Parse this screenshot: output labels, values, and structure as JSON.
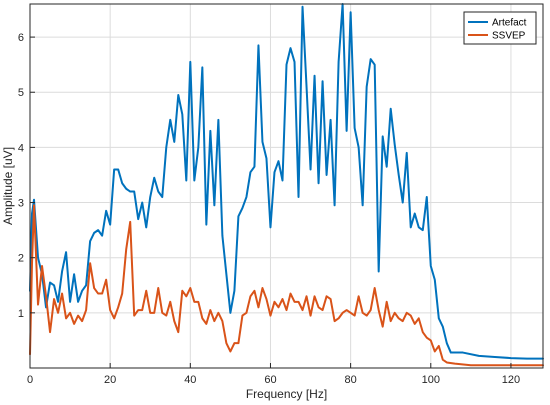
{
  "chart_data": {
    "type": "line",
    "title": "",
    "xlabel": "Frequency [Hz]",
    "ylabel": "Amplitude [uV]",
    "xlim": [
      0,
      128
    ],
    "ylim": [
      0,
      6.6
    ],
    "xticks": [
      0,
      20,
      40,
      60,
      80,
      100,
      120
    ],
    "yticks": [
      1,
      2,
      3,
      4,
      5,
      6
    ],
    "grid": true,
    "legend_position": "top-right",
    "series": [
      {
        "name": "Artefact",
        "color": "#0072BD",
        "points": [
          [
            0,
            1.4
          ],
          [
            0.5,
            2.8
          ],
          [
            1,
            3.05
          ],
          [
            2,
            2.0
          ],
          [
            3,
            1.7
          ],
          [
            4,
            1.1
          ],
          [
            5,
            1.55
          ],
          [
            6,
            1.5
          ],
          [
            7,
            1.2
          ],
          [
            8,
            1.75
          ],
          [
            9,
            2.1
          ],
          [
            10,
            1.2
          ],
          [
            11,
            1.7
          ],
          [
            12,
            1.2
          ],
          [
            13,
            1.4
          ],
          [
            14,
            1.5
          ],
          [
            15,
            2.3
          ],
          [
            16,
            2.45
          ],
          [
            17,
            2.5
          ],
          [
            18,
            2.4
          ],
          [
            19,
            2.85
          ],
          [
            20,
            2.6
          ],
          [
            21,
            3.6
          ],
          [
            22,
            3.6
          ],
          [
            23,
            3.35
          ],
          [
            24,
            3.25
          ],
          [
            25,
            3.2
          ],
          [
            26,
            3.2
          ],
          [
            27,
            2.7
          ],
          [
            28,
            3.0
          ],
          [
            29,
            2.55
          ],
          [
            30,
            3.1
          ],
          [
            31,
            3.45
          ],
          [
            32,
            3.2
          ],
          [
            33,
            3.1
          ],
          [
            34,
            4.0
          ],
          [
            35,
            4.5
          ],
          [
            36,
            4.1
          ],
          [
            37,
            4.95
          ],
          [
            38,
            4.6
          ],
          [
            39,
            3.4
          ],
          [
            40,
            5.55
          ],
          [
            41,
            3.4
          ],
          [
            42,
            4.0
          ],
          [
            43,
            5.45
          ],
          [
            44,
            2.6
          ],
          [
            45,
            4.3
          ],
          [
            46,
            2.95
          ],
          [
            47,
            4.5
          ],
          [
            48,
            2.4
          ],
          [
            49,
            1.7
          ],
          [
            50,
            1.0
          ],
          [
            51,
            1.4
          ],
          [
            52,
            2.75
          ],
          [
            53,
            2.9
          ],
          [
            54,
            3.1
          ],
          [
            55,
            3.55
          ],
          [
            56,
            3.65
          ],
          [
            57,
            5.85
          ],
          [
            58,
            4.1
          ],
          [
            59,
            3.8
          ],
          [
            60,
            2.55
          ],
          [
            61,
            3.55
          ],
          [
            62,
            3.75
          ],
          [
            63,
            3.4
          ],
          [
            64,
            5.5
          ],
          [
            65,
            5.8
          ],
          [
            66,
            5.55
          ],
          [
            67,
            3.1
          ],
          [
            68,
            6.55
          ],
          [
            69,
            5.1
          ],
          [
            70,
            3.6
          ],
          [
            71,
            5.3
          ],
          [
            72,
            3.35
          ],
          [
            73,
            5.2
          ],
          [
            74,
            3.5
          ],
          [
            75,
            4.5
          ],
          [
            76,
            2.95
          ],
          [
            77,
            5.55
          ],
          [
            78,
            6.6
          ],
          [
            79,
            4.3
          ],
          [
            80,
            6.45
          ],
          [
            81,
            4.35
          ],
          [
            82,
            4.0
          ],
          [
            83,
            2.95
          ],
          [
            84,
            5.1
          ],
          [
            85,
            5.6
          ],
          [
            86,
            5.5
          ],
          [
            87,
            1.75
          ],
          [
            88,
            4.2
          ],
          [
            89,
            3.65
          ],
          [
            90,
            4.7
          ],
          [
            91,
            4.05
          ],
          [
            92,
            3.5
          ],
          [
            93,
            3.0
          ],
          [
            94,
            3.9
          ],
          [
            95,
            2.55
          ],
          [
            96,
            2.8
          ],
          [
            97,
            2.55
          ],
          [
            98,
            2.5
          ],
          [
            99,
            3.1
          ],
          [
            100,
            1.85
          ],
          [
            101,
            1.6
          ],
          [
            102,
            0.9
          ],
          [
            103,
            0.75
          ],
          [
            104,
            0.45
          ],
          [
            105,
            0.28
          ],
          [
            106,
            0.28
          ],
          [
            108,
            0.28
          ],
          [
            112,
            0.22
          ],
          [
            116,
            0.2
          ],
          [
            120,
            0.18
          ],
          [
            124,
            0.17
          ],
          [
            128,
            0.17
          ]
        ]
      },
      {
        "name": "SSVEP",
        "color": "#D95319",
        "points": [
          [
            0,
            0.25
          ],
          [
            0.5,
            1.9
          ],
          [
            1,
            2.95
          ],
          [
            2,
            1.15
          ],
          [
            3,
            1.85
          ],
          [
            4,
            1.3
          ],
          [
            5,
            0.65
          ],
          [
            6,
            1.25
          ],
          [
            7,
            1.0
          ],
          [
            8,
            1.35
          ],
          [
            9,
            0.9
          ],
          [
            10,
            1.0
          ],
          [
            11,
            0.8
          ],
          [
            12,
            0.95
          ],
          [
            13,
            0.85
          ],
          [
            14,
            1.05
          ],
          [
            15,
            1.9
          ],
          [
            16,
            1.45
          ],
          [
            17,
            1.35
          ],
          [
            18,
            1.35
          ],
          [
            19,
            1.6
          ],
          [
            20,
            1.05
          ],
          [
            21,
            0.9
          ],
          [
            22,
            1.1
          ],
          [
            23,
            1.35
          ],
          [
            24,
            2.15
          ],
          [
            25,
            2.65
          ],
          [
            26,
            0.95
          ],
          [
            27,
            1.05
          ],
          [
            28,
            1.05
          ],
          [
            29,
            1.4
          ],
          [
            30,
            1.0
          ],
          [
            31,
            1.0
          ],
          [
            32,
            1.45
          ],
          [
            33,
            1.0
          ],
          [
            34,
            0.95
          ],
          [
            35,
            1.2
          ],
          [
            36,
            0.85
          ],
          [
            37,
            0.65
          ],
          [
            38,
            1.4
          ],
          [
            39,
            1.3
          ],
          [
            40,
            1.45
          ],
          [
            41,
            1.2
          ],
          [
            42,
            1.2
          ],
          [
            43,
            0.9
          ],
          [
            44,
            0.8
          ],
          [
            45,
            1.05
          ],
          [
            46,
            0.85
          ],
          [
            47,
            1.0
          ],
          [
            48,
            0.85
          ],
          [
            49,
            0.45
          ],
          [
            50,
            0.3
          ],
          [
            51,
            0.45
          ],
          [
            52,
            0.45
          ],
          [
            53,
            0.95
          ],
          [
            54,
            1.0
          ],
          [
            55,
            1.3
          ],
          [
            56,
            1.4
          ],
          [
            57,
            1.1
          ],
          [
            58,
            1.45
          ],
          [
            59,
            1.25
          ],
          [
            60,
            0.95
          ],
          [
            61,
            1.2
          ],
          [
            62,
            1.1
          ],
          [
            63,
            1.25
          ],
          [
            64,
            1.05
          ],
          [
            65,
            1.35
          ],
          [
            66,
            1.2
          ],
          [
            67,
            1.2
          ],
          [
            68,
            1.05
          ],
          [
            69,
            1.3
          ],
          [
            70,
            0.95
          ],
          [
            71,
            1.3
          ],
          [
            72,
            1.1
          ],
          [
            73,
            1.05
          ],
          [
            74,
            1.3
          ],
          [
            75,
            1.25
          ],
          [
            76,
            0.85
          ],
          [
            77,
            0.9
          ],
          [
            78,
            1.0
          ],
          [
            79,
            1.05
          ],
          [
            80,
            1.0
          ],
          [
            81,
            0.95
          ],
          [
            82,
            1.3
          ],
          [
            83,
            1.0
          ],
          [
            84,
            0.95
          ],
          [
            85,
            1.05
          ],
          [
            86,
            1.45
          ],
          [
            87,
            1.05
          ],
          [
            88,
            0.75
          ],
          [
            89,
            1.2
          ],
          [
            90,
            0.85
          ],
          [
            91,
            1.0
          ],
          [
            92,
            0.9
          ],
          [
            93,
            0.85
          ],
          [
            94,
            1.0
          ],
          [
            95,
            0.95
          ],
          [
            96,
            0.8
          ],
          [
            97,
            0.9
          ],
          [
            98,
            0.65
          ],
          [
            99,
            0.55
          ],
          [
            100,
            0.5
          ],
          [
            101,
            0.3
          ],
          [
            102,
            0.4
          ],
          [
            103,
            0.15
          ],
          [
            104,
            0.1
          ],
          [
            106,
            0.08
          ],
          [
            110,
            0.05
          ],
          [
            116,
            0.05
          ],
          [
            122,
            0.05
          ],
          [
            128,
            0.05
          ]
        ]
      }
    ]
  }
}
